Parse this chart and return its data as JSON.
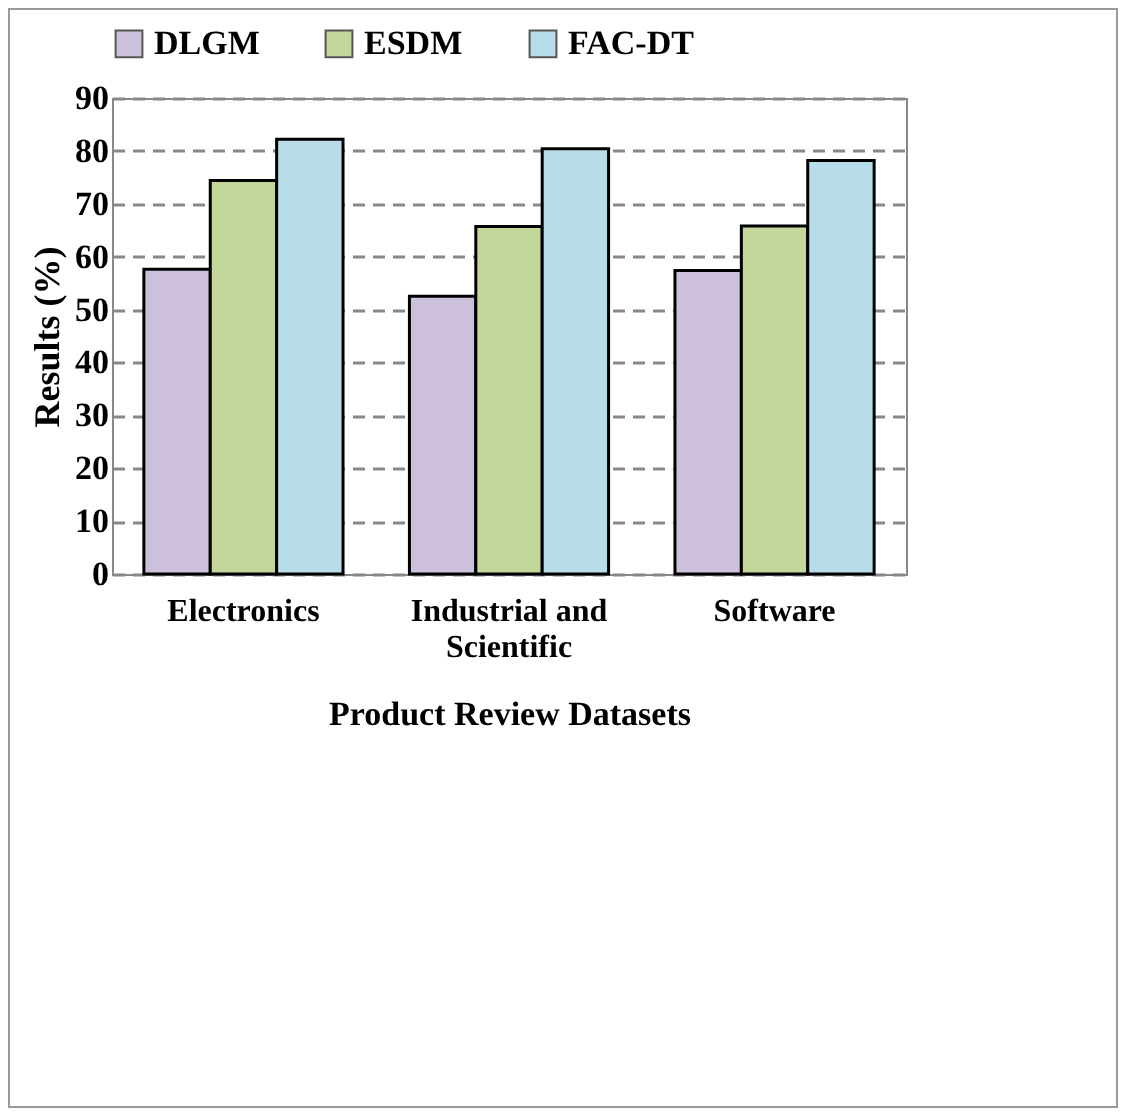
{
  "chart_data": {
    "type": "bar",
    "xlabel": "Product Review Datasets",
    "ylabel": "Results (%)",
    "categories": [
      "Electronics",
      "Industrial and Scientific",
      "Software"
    ],
    "series": [
      {
        "name": "DLGM",
        "color": "#ccc0da",
        "values": [
          57.6,
          52.5,
          57.4
        ]
      },
      {
        "name": "ESDM",
        "color": "#c4d79b",
        "values": [
          74.4,
          65.7,
          65.8
        ]
      },
      {
        "name": "FAC-DT",
        "color": "#b7dee8",
        "values": [
          82.2,
          80.4,
          78.2
        ]
      }
    ],
    "ylim": [
      0,
      90
    ],
    "yticks": [
      0,
      10,
      20,
      30,
      40,
      50,
      60,
      70,
      80,
      90
    ],
    "grid": "y",
    "legend": "top"
  }
}
